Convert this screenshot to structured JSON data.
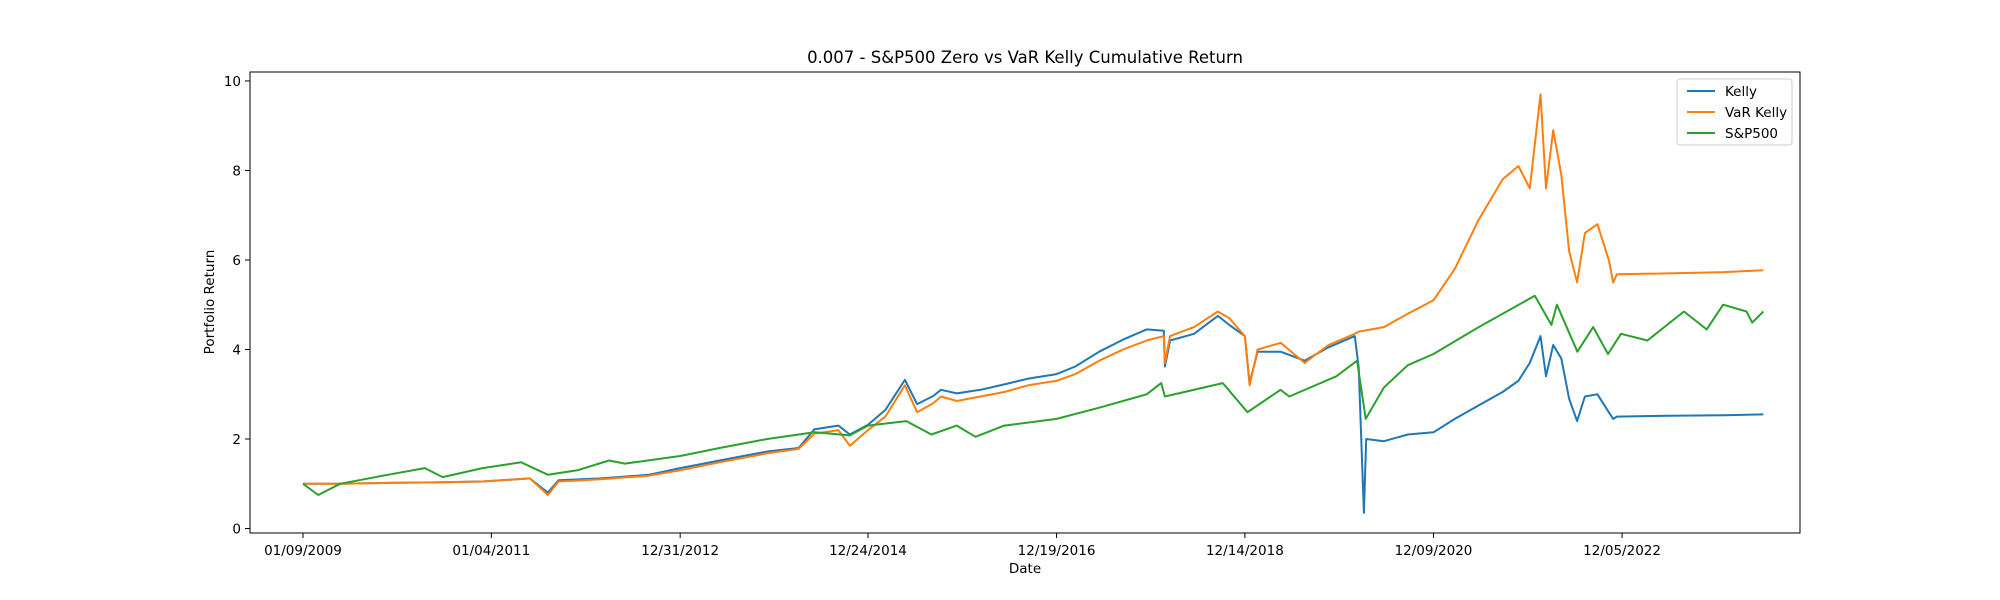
{
  "chart_data": {
    "type": "line",
    "title": "0.007 - S&P500 Zero vs VaR Kelly Cumulative Return",
    "xlabel": "Date",
    "ylabel": "Portfolio Return",
    "x_ticks": [
      "01/09/2009",
      "01/04/2011",
      "12/31/2012",
      "12/24/2014",
      "12/19/2016",
      "12/14/2018",
      "12/09/2020",
      "12/05/2022"
    ],
    "y_ticks": [
      "0",
      "2",
      "4",
      "6",
      "8",
      "10"
    ],
    "ylim": [
      -0.1,
      10.2
    ],
    "grid": false,
    "legend_position": "top-right",
    "series": [
      {
        "name": "Kelly",
        "color": "#1f77b4",
        "points": [
          [
            "01/09/2009",
            1.0
          ],
          [
            "06/01/2009",
            1.0
          ],
          [
            "12/01/2009",
            1.02
          ],
          [
            "06/01/2010",
            1.03
          ],
          [
            "12/01/2010",
            1.05
          ],
          [
            "06/01/2011",
            1.12
          ],
          [
            "08/10/2011",
            0.8
          ],
          [
            "09/20/2011",
            1.08
          ],
          [
            "03/01/2012",
            1.12
          ],
          [
            "09/01/2012",
            1.2
          ],
          [
            "12/31/2012",
            1.35
          ],
          [
            "06/01/2013",
            1.52
          ],
          [
            "12/01/2013",
            1.72
          ],
          [
            "04/01/2014",
            1.8
          ],
          [
            "06/01/2014",
            2.22
          ],
          [
            "09/01/2014",
            2.3
          ],
          [
            "10/15/2014",
            2.1
          ],
          [
            "12/24/2014",
            2.32
          ],
          [
            "03/01/2015",
            2.65
          ],
          [
            "05/15/2015",
            3.32
          ],
          [
            "07/01/2015",
            2.78
          ],
          [
            "09/01/2015",
            2.96
          ],
          [
            "10/01/2015",
            3.1
          ],
          [
            "12/01/2015",
            3.02
          ],
          [
            "03/01/2016",
            3.1
          ],
          [
            "06/01/2016",
            3.22
          ],
          [
            "09/01/2016",
            3.35
          ],
          [
            "12/19/2016",
            3.45
          ],
          [
            "03/01/2017",
            3.62
          ],
          [
            "06/01/2017",
            3.95
          ],
          [
            "09/01/2017",
            4.22
          ],
          [
            "12/01/2017",
            4.45
          ],
          [
            "02/05/2018",
            4.42
          ],
          [
            "02/09/2018",
            3.62
          ],
          [
            "03/01/2018",
            4.2
          ],
          [
            "06/01/2018",
            4.35
          ],
          [
            "09/01/2018",
            4.75
          ],
          [
            "10/15/2018",
            4.55
          ],
          [
            "12/14/2018",
            4.3
          ],
          [
            "01/01/2019",
            3.25
          ],
          [
            "02/01/2019",
            3.95
          ],
          [
            "05/01/2019",
            3.95
          ],
          [
            "08/01/2019",
            3.75
          ],
          [
            "11/01/2019",
            4.05
          ],
          [
            "02/10/2020",
            4.3
          ],
          [
            "02/25/2020",
            3.6
          ],
          [
            "03/16/2020",
            0.35
          ],
          [
            "03/25/2020",
            2.0
          ],
          [
            "06/01/2020",
            1.95
          ],
          [
            "09/01/2020",
            2.1
          ],
          [
            "12/09/2020",
            2.15
          ],
          [
            "03/01/2021",
            2.45
          ],
          [
            "06/01/2021",
            2.75
          ],
          [
            "09/01/2021",
            3.05
          ],
          [
            "11/01/2021",
            3.3
          ],
          [
            "12/15/2021",
            3.7
          ],
          [
            "01/25/2022",
            4.3
          ],
          [
            "02/15/2022",
            3.4
          ],
          [
            "03/15/2022",
            4.1
          ],
          [
            "04/15/2022",
            3.8
          ],
          [
            "05/15/2022",
            2.9
          ],
          [
            "06/15/2022",
            2.4
          ],
          [
            "07/15/2022",
            2.95
          ],
          [
            "09/01/2022",
            3.0
          ],
          [
            "10/15/2022",
            2.6
          ],
          [
            "11/01/2022",
            2.45
          ],
          [
            "11/15/2022",
            2.5
          ],
          [
            "06/01/2023",
            2.52
          ],
          [
            "01/01/2024",
            2.53
          ],
          [
            "06/01/2024",
            2.55
          ]
        ]
      },
      {
        "name": "VaR Kelly",
        "color": "#ff7f0e",
        "points": [
          [
            "01/09/2009",
            1.0
          ],
          [
            "06/01/2009",
            1.0
          ],
          [
            "12/01/2009",
            1.02
          ],
          [
            "06/01/2010",
            1.03
          ],
          [
            "12/01/2010",
            1.05
          ],
          [
            "06/01/2011",
            1.12
          ],
          [
            "08/10/2011",
            0.75
          ],
          [
            "09/20/2011",
            1.05
          ],
          [
            "03/01/2012",
            1.1
          ],
          [
            "09/01/2012",
            1.18
          ],
          [
            "12/31/2012",
            1.3
          ],
          [
            "06/01/2013",
            1.48
          ],
          [
            "12/01/2013",
            1.68
          ],
          [
            "04/01/2014",
            1.78
          ],
          [
            "06/01/2014",
            2.12
          ],
          [
            "09/01/2014",
            2.2
          ],
          [
            "10/15/2014",
            1.85
          ],
          [
            "12/24/2014",
            2.2
          ],
          [
            "03/01/2015",
            2.5
          ],
          [
            "05/15/2015",
            3.2
          ],
          [
            "07/01/2015",
            2.6
          ],
          [
            "09/01/2015",
            2.8
          ],
          [
            "10/01/2015",
            2.95
          ],
          [
            "12/01/2015",
            2.85
          ],
          [
            "03/01/2016",
            2.95
          ],
          [
            "06/01/2016",
            3.05
          ],
          [
            "09/01/2016",
            3.2
          ],
          [
            "12/19/2016",
            3.3
          ],
          [
            "03/01/2017",
            3.45
          ],
          [
            "06/01/2017",
            3.75
          ],
          [
            "09/01/2017",
            4.0
          ],
          [
            "12/01/2017",
            4.2
          ],
          [
            "02/05/2018",
            4.3
          ],
          [
            "02/09/2018",
            3.7
          ],
          [
            "03/01/2018",
            4.3
          ],
          [
            "06/01/2018",
            4.5
          ],
          [
            "09/01/2018",
            4.85
          ],
          [
            "10/15/2018",
            4.7
          ],
          [
            "12/14/2018",
            4.3
          ],
          [
            "01/01/2019",
            3.2
          ],
          [
            "02/01/2019",
            4.0
          ],
          [
            "05/01/2019",
            4.15
          ],
          [
            "08/01/2019",
            3.7
          ],
          [
            "11/01/2019",
            4.1
          ],
          [
            "02/10/2020",
            4.35
          ],
          [
            "02/25/2020",
            4.4
          ],
          [
            "06/01/2020",
            4.5
          ],
          [
            "09/01/2020",
            4.8
          ],
          [
            "12/09/2020",
            5.1
          ],
          [
            "03/01/2021",
            5.8
          ],
          [
            "06/01/2021",
            6.9
          ],
          [
            "09/01/2021",
            7.8
          ],
          [
            "11/01/2021",
            8.1
          ],
          [
            "12/15/2021",
            7.6
          ],
          [
            "01/25/2022",
            9.7
          ],
          [
            "02/15/2022",
            7.6
          ],
          [
            "03/15/2022",
            8.9
          ],
          [
            "04/15/2022",
            7.9
          ],
          [
            "05/15/2022",
            6.2
          ],
          [
            "06/15/2022",
            5.5
          ],
          [
            "07/15/2022",
            6.6
          ],
          [
            "09/01/2022",
            6.8
          ],
          [
            "10/15/2022",
            6.0
          ],
          [
            "11/01/2022",
            5.5
          ],
          [
            "11/15/2022",
            5.68
          ],
          [
            "06/01/2023",
            5.7
          ],
          [
            "01/01/2024",
            5.73
          ],
          [
            "06/01/2024",
            5.77
          ]
        ]
      },
      {
        "name": "S&P500",
        "color": "#2ca02c",
        "points": [
          [
            "01/09/2009",
            1.0
          ],
          [
            "03/09/2009",
            0.75
          ],
          [
            "06/01/2009",
            1.0
          ],
          [
            "12/01/2009",
            1.2
          ],
          [
            "04/23/2010",
            1.35
          ],
          [
            "07/01/2010",
            1.15
          ],
          [
            "12/01/2010",
            1.35
          ],
          [
            "04/29/2011",
            1.48
          ],
          [
            "08/10/2011",
            1.2
          ],
          [
            "12/01/2011",
            1.3
          ],
          [
            "04/01/2012",
            1.52
          ],
          [
            "06/01/2012",
            1.45
          ],
          [
            "12/31/2012",
            1.62
          ],
          [
            "06/01/2013",
            1.8
          ],
          [
            "12/01/2013",
            2.0
          ],
          [
            "06/01/2014",
            2.15
          ],
          [
            "10/15/2014",
            2.08
          ],
          [
            "12/24/2014",
            2.3
          ],
          [
            "05/21/2015",
            2.4
          ],
          [
            "08/25/2015",
            2.1
          ],
          [
            "12/01/2015",
            2.3
          ],
          [
            "02/11/2016",
            2.05
          ],
          [
            "06/01/2016",
            2.3
          ],
          [
            "12/19/2016",
            2.45
          ],
          [
            "06/01/2017",
            2.7
          ],
          [
            "12/01/2017",
            3.0
          ],
          [
            "01/26/2018",
            3.25
          ],
          [
            "02/09/2018",
            2.95
          ],
          [
            "09/20/2018",
            3.25
          ],
          [
            "12/24/2018",
            2.6
          ],
          [
            "04/30/2019",
            3.1
          ],
          [
            "06/03/2019",
            2.95
          ],
          [
            "12/01/2019",
            3.4
          ],
          [
            "02/19/2020",
            3.75
          ],
          [
            "03/23/2020",
            2.45
          ],
          [
            "06/01/2020",
            3.15
          ],
          [
            "09/01/2020",
            3.65
          ],
          [
            "12/09/2020",
            3.9
          ],
          [
            "06/01/2021",
            4.5
          ],
          [
            "01/03/2022",
            5.2
          ],
          [
            "03/08/2022",
            4.55
          ],
          [
            "03/29/2022",
            5.0
          ],
          [
            "06/16/2022",
            3.95
          ],
          [
            "08/16/2022",
            4.5
          ],
          [
            "10/12/2022",
            3.9
          ],
          [
            "12/01/2022",
            4.35
          ],
          [
            "03/13/2023",
            4.2
          ],
          [
            "07/31/2023",
            4.85
          ],
          [
            "10/27/2023",
            4.45
          ],
          [
            "12/29/2023",
            5.0
          ],
          [
            "03/28/2024",
            4.85
          ],
          [
            "04/19/2024",
            4.6
          ],
          [
            "06/01/2024",
            4.85
          ]
        ]
      }
    ]
  }
}
